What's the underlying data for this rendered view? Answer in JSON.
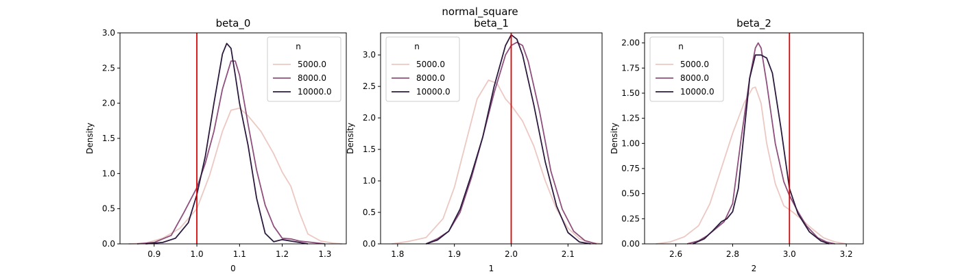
{
  "suptitle": "normal_square",
  "legend_title": "n",
  "series_colors": [
    "#ecc8c2",
    "#8f4f7c",
    "#2b1a3d"
  ],
  "ref_line_color": "#e00000",
  "chart_data": [
    {
      "type": "line",
      "title": "beta_0",
      "xlabel": "0",
      "ylabel": "Density",
      "xlim": [
        0.82,
        1.35
      ],
      "ylim": [
        0,
        3.0
      ],
      "xticks": [
        0.9,
        1.0,
        1.1,
        1.2,
        1.3
      ],
      "xtick_labels": [
        "0.9",
        "1.0",
        "1.1",
        "1.2",
        "1.3"
      ],
      "yticks": [
        0,
        0.5,
        1.0,
        1.5,
        2.0,
        2.5,
        3.0
      ],
      "ytick_labels": [
        "0.0",
        "0.5",
        "1.0",
        "1.5",
        "2.0",
        "2.5",
        "3.0"
      ],
      "ref_line": 1.0,
      "legend_position": "top-right",
      "series": [
        {
          "name": "5000.0",
          "x": [
            0.84,
            0.88,
            0.92,
            0.96,
            1.0,
            1.03,
            1.06,
            1.08,
            1.1,
            1.12,
            1.15,
            1.18,
            1.2,
            1.22,
            1.24,
            1.26,
            1.29,
            1.32,
            1.34
          ],
          "y": [
            0.0,
            0.01,
            0.08,
            0.22,
            0.5,
            0.98,
            1.6,
            1.9,
            1.93,
            1.82,
            1.6,
            1.28,
            1.02,
            0.82,
            0.45,
            0.14,
            0.04,
            0.01,
            0.0
          ]
        },
        {
          "name": "8000.0",
          "x": [
            0.86,
            0.9,
            0.94,
            0.97,
            1.0,
            1.02,
            1.04,
            1.06,
            1.08,
            1.09,
            1.1,
            1.12,
            1.14,
            1.16,
            1.18,
            1.2,
            1.22,
            1.24,
            1.27,
            1.3
          ],
          "y": [
            0.0,
            0.02,
            0.12,
            0.45,
            0.8,
            1.15,
            1.6,
            2.2,
            2.6,
            2.6,
            2.4,
            1.7,
            1.05,
            0.55,
            0.25,
            0.08,
            0.07,
            0.04,
            0.02,
            0.0
          ]
        },
        {
          "name": "10000.0",
          "x": [
            0.88,
            0.92,
            0.95,
            0.98,
            1.0,
            1.02,
            1.04,
            1.06,
            1.07,
            1.08,
            1.09,
            1.1,
            1.12,
            1.14,
            1.16,
            1.18,
            1.2,
            1.23,
            1.26
          ],
          "y": [
            0.0,
            0.02,
            0.08,
            0.3,
            0.7,
            1.25,
            2.0,
            2.7,
            2.85,
            2.78,
            2.4,
            2.0,
            1.4,
            0.65,
            0.15,
            0.03,
            0.06,
            0.03,
            0.0
          ]
        }
      ]
    },
    {
      "type": "line",
      "title": "beta_1",
      "xlabel": "1",
      "ylabel": "Density",
      "xlim": [
        1.77,
        2.16
      ],
      "ylim": [
        0,
        3.35
      ],
      "xticks": [
        1.8,
        1.9,
        2.0,
        2.1
      ],
      "xtick_labels": [
        "1.8",
        "1.9",
        "2.0",
        "2.1"
      ],
      "yticks": [
        0,
        0.5,
        1.0,
        1.5,
        2.0,
        2.5,
        3.0
      ],
      "ytick_labels": [
        "0.0",
        "0.5",
        "1.0",
        "1.5",
        "2.0",
        "2.5",
        "3.0"
      ],
      "ref_line": 2.0,
      "legend_position": "top-left",
      "series": [
        {
          "name": "5000.0",
          "x": [
            1.79,
            1.82,
            1.85,
            1.88,
            1.9,
            1.92,
            1.94,
            1.96,
            1.975,
            1.99,
            2.0,
            2.02,
            2.04,
            2.06,
            2.08,
            2.1,
            2.12,
            2.14,
            2.16
          ],
          "y": [
            0.0,
            0.04,
            0.1,
            0.4,
            0.9,
            1.6,
            2.3,
            2.6,
            2.55,
            2.3,
            2.2,
            1.95,
            1.55,
            1.0,
            0.55,
            0.25,
            0.08,
            0.02,
            0.0
          ]
        },
        {
          "name": "8000.0",
          "x": [
            1.85,
            1.87,
            1.89,
            1.91,
            1.93,
            1.95,
            1.97,
            1.99,
            2.0,
            2.01,
            2.02,
            2.03,
            2.05,
            2.07,
            2.09,
            2.11,
            2.13,
            2.15
          ],
          "y": [
            0.0,
            0.08,
            0.2,
            0.5,
            1.05,
            1.7,
            2.4,
            3.0,
            3.15,
            3.2,
            3.15,
            2.9,
            2.1,
            1.15,
            0.55,
            0.2,
            0.05,
            0.0
          ]
        },
        {
          "name": "10000.0",
          "x": [
            1.85,
            1.87,
            1.89,
            1.91,
            1.93,
            1.95,
            1.97,
            1.99,
            2.0,
            2.01,
            2.02,
            2.04,
            2.06,
            2.08,
            2.1,
            2.12,
            2.14
          ],
          "y": [
            0.0,
            0.06,
            0.2,
            0.55,
            1.1,
            1.7,
            2.5,
            3.15,
            3.32,
            3.25,
            3.0,
            2.2,
            1.3,
            0.6,
            0.18,
            0.03,
            0.0
          ]
        }
      ]
    },
    {
      "type": "line",
      "title": "beta_2",
      "xlabel": "2",
      "ylabel": "Density",
      "xlim": [
        2.49,
        3.26
      ],
      "ylim": [
        0,
        2.1
      ],
      "xticks": [
        2.6,
        2.8,
        3.0,
        3.2
      ],
      "xtick_labels": [
        "2.6",
        "2.8",
        "3.0",
        "3.2"
      ],
      "yticks": [
        0,
        0.25,
        0.5,
        0.75,
        1.0,
        1.25,
        1.5,
        1.75,
        2.0
      ],
      "ytick_labels": [
        "0.00",
        "0.25",
        "0.50",
        "0.75",
        "1.00",
        "1.25",
        "1.50",
        "1.75",
        "2.00"
      ],
      "ref_line": 3.0,
      "legend_position": "top-left",
      "series": [
        {
          "name": "5000.0",
          "x": [
            2.53,
            2.58,
            2.63,
            2.68,
            2.72,
            2.76,
            2.8,
            2.84,
            2.87,
            2.88,
            2.9,
            2.92,
            2.95,
            2.98,
            3.01,
            3.04,
            3.08,
            3.12,
            3.16,
            3.2
          ],
          "y": [
            0.0,
            0.02,
            0.07,
            0.18,
            0.4,
            0.75,
            1.1,
            1.4,
            1.55,
            1.56,
            1.4,
            1.0,
            0.6,
            0.38,
            0.32,
            0.25,
            0.15,
            0.06,
            0.02,
            0.0
          ]
        },
        {
          "name": "8000.0",
          "x": [
            2.64,
            2.68,
            2.71,
            2.74,
            2.77,
            2.8,
            2.83,
            2.86,
            2.88,
            2.89,
            2.9,
            2.92,
            2.95,
            2.98,
            3.0,
            3.03,
            3.06,
            3.1,
            3.13,
            3.16
          ],
          "y": [
            0.0,
            0.03,
            0.08,
            0.15,
            0.22,
            0.4,
            1.05,
            1.65,
            1.95,
            2.0,
            1.95,
            1.6,
            1.0,
            0.62,
            0.48,
            0.32,
            0.18,
            0.06,
            0.02,
            0.0
          ]
        },
        {
          "name": "10000.0",
          "x": [
            2.66,
            2.7,
            2.73,
            2.76,
            2.78,
            2.8,
            2.82,
            2.84,
            2.86,
            2.88,
            2.9,
            2.92,
            2.94,
            2.97,
            3.0,
            3.03,
            3.07,
            3.11,
            3.14
          ],
          "y": [
            0.0,
            0.05,
            0.13,
            0.22,
            0.25,
            0.32,
            0.55,
            1.1,
            1.65,
            1.88,
            1.88,
            1.85,
            1.7,
            1.15,
            0.55,
            0.3,
            0.12,
            0.03,
            0.0
          ]
        }
      ]
    }
  ]
}
